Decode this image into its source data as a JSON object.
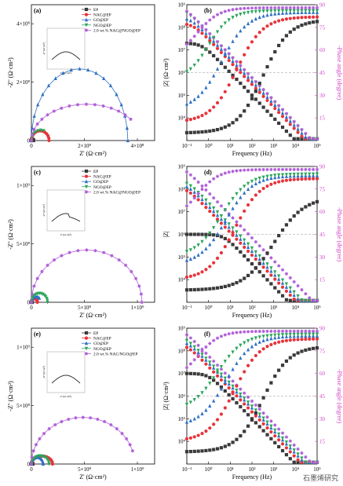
{
  "watermark": "石墨烯研究",
  "colors": {
    "EP": "#3a3a3a",
    "NAC": "#e8333a",
    "GO": "#2e6fc4",
    "NGO": "#2aa65a",
    "NNG": "#b05fd8",
    "phase": "#d147c8"
  },
  "legend_labels_ab": [
    "EP",
    "NAC@EP",
    "GO@EP",
    "NGO@EP",
    "2.0 wt.% NAC@NGO@EP"
  ],
  "legend_labels_cdef": [
    "EP",
    "NAC@EP",
    "GO@EP",
    "NGO@EP",
    "2.0 wt.% NAC@NGO@EP"
  ],
  "legend_labels_e": [
    "EP",
    "NAC@EP",
    "GO@EP",
    "NGO@EP",
    "2.0 wt.% NAC/NGO@EP"
  ],
  "chart_data": [
    {
      "panel": "(a)",
      "type": "scatter",
      "xlabel": "Z' (Ω·cm²)",
      "ylabel": "-Z'' (Ω·cm²)",
      "xticks": [
        "0",
        "2×10⁸",
        "4×10⁸"
      ],
      "yticks": [
        "0",
        "2×10⁸",
        "4×10⁸"
      ],
      "xlim": [
        0,
        460000000.0
      ],
      "ylim": [
        0,
        460000000.0
      ],
      "series": [
        {
          "name": "EP",
          "arc": {
            "r": 4000000.0,
            "h": 1.0,
            "n": 12,
            "end": 8000000.0
          }
        },
        {
          "name": "NAC@EP",
          "arc": {
            "r": 33000000.0,
            "h": 1.0,
            "n": 12,
            "end": 66000000.0
          }
        },
        {
          "name": "GO@EP",
          "arc": {
            "r": 180000000.0,
            "h": 1.35,
            "n": 18,
            "end": 380000000.0
          }
        },
        {
          "name": "NGO@EP",
          "arc": {
            "r": 35000000.0,
            "h": 1.0,
            "n": 10,
            "end": 55000000.0
          }
        },
        {
          "name": "2.0 wt.% NAC@NGO@EP",
          "arc": {
            "r": 205000000.0,
            "h": 0.6,
            "n": 20,
            "end": 380000000.0
          }
        }
      ],
      "inset": {
        "ylabel": "-Z'' (Ω·cm²)",
        "xlabel": "Z' (Ω·cm²)"
      }
    },
    {
      "panel": "(b)",
      "type": "scatter",
      "xlabel": "Frequency (Hz)",
      "ylabel": "|Z| (Ω·cm²)",
      "y2label": "-Phase angle (degree)",
      "xscale": "log",
      "yscale": "log",
      "xlim": [
        0.1,
        100000
      ],
      "ylim": [
        1000,
        1000000000.0
      ],
      "y2lim": [
        0,
        90
      ],
      "xticks": [
        "10⁻¹",
        "10⁰",
        "10¹",
        "10²",
        "10³",
        "10⁴",
        "10⁵"
      ],
      "yticks": [
        "10⁴",
        "10⁵",
        "10⁶",
        "10⁷",
        "10⁸",
        "10⁹"
      ],
      "y2ticks": [
        "15",
        "30",
        "45",
        "60",
        "75",
        "90"
      ],
      "dashed_phase_at": 45,
      "impedance": [
        {
          "name": "EP",
          "Z0": 20000000.0,
          "fc": 0.5
        },
        {
          "name": "NAC@EP",
          "Z0": 150000000.0,
          "fc": 0.2
        },
        {
          "name": "GO@EP",
          "Z0": 280000000.0,
          "fc": 0.15
        },
        {
          "name": "NGO@EP",
          "Z0": 700000000.0,
          "fc": 0.08
        },
        {
          "name": "2.0 wt.% NAC@NGO@EP",
          "Z0": 1000000000.0,
          "fc": 0.06
        }
      ],
      "phase": [
        {
          "name": "EP",
          "low": 5,
          "high": 80,
          "mid": 2.5,
          "w": 0.6
        },
        {
          "name": "NAC@EP",
          "low": 12,
          "high": 82,
          "mid": 1.3,
          "w": 0.6
        },
        {
          "name": "GO@EP",
          "low": 20,
          "high": 85,
          "mid": 0.6,
          "w": 0.6
        },
        {
          "name": "NGO@EP",
          "low": 40,
          "high": 86,
          "mid": 0.0,
          "w": 0.5
        },
        {
          "name": "2.0 wt.% NAC@NGO@EP",
          "low": 55,
          "high": 88,
          "mid": -0.5,
          "w": 0.5
        }
      ]
    },
    {
      "panel": "(c)",
      "type": "scatter",
      "xlabel": "Z' (Ω·cm²)",
      "ylabel": "-Z'' (Ω·cm²)",
      "xticks": [
        "0",
        "5×10⁸",
        "1×10⁹"
      ],
      "yticks": [
        "0",
        "5×10⁸",
        "1×10⁹"
      ],
      "xlim": [
        0,
        1450000000.0
      ],
      "ylim": [
        0,
        1300000000.0
      ],
      "series": [
        {
          "name": "EP",
          "arc": {
            "r": 5000000.0,
            "h": 1.0,
            "n": 8,
            "end": 10000000.0
          }
        },
        {
          "name": "NAC@EP",
          "arc": {
            "r": 35000000.0,
            "h": 1.0,
            "n": 12,
            "end": 70000000.0
          }
        },
        {
          "name": "GO@EP",
          "arc": {
            "r": 55000000.0,
            "h": 1.0,
            "n": 12,
            "end": 100000000.0
          }
        },
        {
          "name": "NGO@EP",
          "arc": {
            "r": 95000000.0,
            "h": 0.9,
            "n": 14,
            "end": 190000000.0
          }
        },
        {
          "name": "2.0 wt.% NAC@NGO@EP",
          "arc": {
            "r": 650000000.0,
            "h": 0.77,
            "n": 20,
            "end": 1300000000.0
          }
        }
      ],
      "inset": {
        "ylabel": "-Z'' (Ω·cm²)",
        "xlabel": "Z' (Ω·cm²)"
      }
    },
    {
      "panel": "(d)",
      "type": "scatter",
      "xlabel": "Frequency (Hz)",
      "ylabel": "|Z|",
      "y2label": "-Phase angle (degree)",
      "xscale": "log",
      "yscale": "log",
      "xlim": [
        0.1,
        100000
      ],
      "ylim": [
        1000,
        1000000000.0
      ],
      "y2lim": [
        0,
        90
      ],
      "xticks": [
        "10⁻¹",
        "10⁰",
        "10¹",
        "10²",
        "10³",
        "10⁴",
        "10⁵"
      ],
      "yticks": [
        "10⁴",
        "10⁵",
        "10⁶",
        "10⁷",
        "10⁸",
        "10⁹"
      ],
      "y2ticks": [
        "15",
        "30",
        "45",
        "60",
        "75",
        "90"
      ],
      "dashed_phase_at": 45,
      "impedance": [
        {
          "name": "EP",
          "Z0": 1000000.0,
          "fc": 5
        },
        {
          "name": "NAC@EP",
          "Z0": 120000000.0,
          "fc": 0.1
        },
        {
          "name": "GO@EP",
          "Z0": 180000000.0,
          "fc": 0.1
        },
        {
          "name": "NGO@EP",
          "Z0": 250000000.0,
          "fc": 0.1
        },
        {
          "name": "2.0 wt.% NAC@NGO@EP",
          "Z0": 1000000000.0,
          "fc": 0.07
        }
      ],
      "phase": [
        {
          "name": "EP",
          "low": 8,
          "high": 70,
          "mid": 3.0,
          "w": 0.7
        },
        {
          "name": "NAC@EP",
          "low": 15,
          "high": 82,
          "mid": 1.2,
          "w": 0.6
        },
        {
          "name": "GO@EP",
          "low": 25,
          "high": 84,
          "mid": 0.8,
          "w": 0.6
        },
        {
          "name": "NGO@EP",
          "low": 30,
          "high": 85,
          "mid": 0.6,
          "w": 0.6
        },
        {
          "name": "2.0 wt.% NAC@NGO@EP",
          "low": 55,
          "high": 88,
          "mid": -0.5,
          "w": 0.5
        }
      ]
    },
    {
      "panel": "(e)",
      "type": "scatter",
      "xlabel": "Z' (Ω·cm²)",
      "ylabel": "-Z'' (Ω·cm²)",
      "xticks": [
        "0",
        "5×10⁸",
        "1×10⁹"
      ],
      "yticks": [
        "0",
        "5×10⁸",
        "1×10⁹"
      ],
      "xlim": [
        0,
        1050000000.0
      ],
      "ylim": [
        0,
        1000000000.0
      ],
      "series": [
        {
          "name": "EP",
          "arc": {
            "r": 6000000.0,
            "h": 1.0,
            "n": 8,
            "end": 12000000.0
          }
        },
        {
          "name": "NAC@EP",
          "arc": {
            "r": 90000000.0,
            "h": 0.65,
            "n": 14,
            "end": 190000000.0
          }
        },
        {
          "name": "GO@EP",
          "arc": {
            "r": 50000000.0,
            "h": 1.0,
            "n": 12,
            "end": 100000000.0
          }
        },
        {
          "name": "NGO@EP",
          "arc": {
            "r": 75000000.0,
            "h": 0.8,
            "n": 12,
            "end": 150000000.0
          }
        },
        {
          "name": "2.0 wt.% NAC/NGO@EP",
          "arc": {
            "r": 440000000.0,
            "h": 0.78,
            "n": 22,
            "end": 870000000.0
          }
        }
      ],
      "inset": {
        "ylabel": "-Z'' (Ω·cm²)",
        "xlabel": "Z' (Ω·cm²)"
      }
    },
    {
      "panel": "(f)",
      "type": "scatter",
      "xlabel": "Frequency (Hz)",
      "ylabel": "|Z| (Ω·cm²)",
      "y2label": "-Phase angle (degree)",
      "xscale": "log",
      "yscale": "log",
      "xlim": [
        0.1,
        100000
      ],
      "ylim": [
        1000,
        1000000000.0
      ],
      "y2lim": [
        0,
        90
      ],
      "xticks": [
        "10⁻¹",
        "10⁰",
        "10¹",
        "10²",
        "10³",
        "10⁴",
        "10⁵"
      ],
      "yticks": [
        "10⁴",
        "10⁵",
        "10⁶",
        "10⁷",
        "10⁸",
        "10⁹"
      ],
      "y2ticks": [
        "15",
        "30",
        "45",
        "60",
        "75",
        "90"
      ],
      "dashed_phase_at": 45,
      "impedance": [
        {
          "name": "EP",
          "Z0": 10000000.0,
          "fc": 1
        },
        {
          "name": "NAC@EP",
          "Z0": 200000000.0,
          "fc": 0.1
        },
        {
          "name": "GO@EP",
          "Z0": 300000000.0,
          "fc": 0.1
        },
        {
          "name": "NGO@EP",
          "Z0": 450000000.0,
          "fc": 0.08
        },
        {
          "name": "2.0 wt.% NAC@NGO@EP",
          "Z0": 1000000000.0,
          "fc": 0.06
        }
      ],
      "phase": [
        {
          "name": "EP",
          "low": 8,
          "high": 78,
          "mid": 2.5,
          "w": 0.6
        },
        {
          "name": "NAC@EP",
          "low": 15,
          "high": 83,
          "mid": 1.2,
          "w": 0.6
        },
        {
          "name": "GO@EP",
          "low": 25,
          "high": 85,
          "mid": 0.8,
          "w": 0.6
        },
        {
          "name": "NGO@EP",
          "low": 35,
          "high": 86,
          "mid": 0.4,
          "w": 0.6
        },
        {
          "name": "2.0 wt.% NAC@NGO@EP",
          "low": 55,
          "high": 88,
          "mid": -0.5,
          "w": 0.5
        }
      ]
    }
  ]
}
